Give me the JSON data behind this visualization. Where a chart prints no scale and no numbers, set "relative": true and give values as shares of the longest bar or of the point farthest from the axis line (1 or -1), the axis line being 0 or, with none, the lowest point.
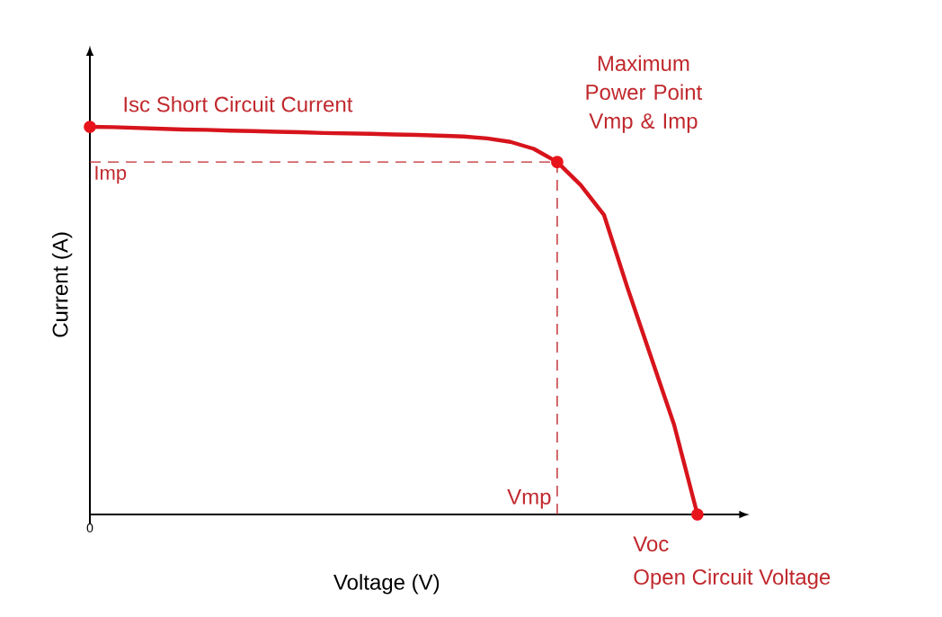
{
  "chart_data": {
    "type": "line",
    "relative": true,
    "xlabel": "Voltage (V)",
    "ylabel": "Current  (A)",
    "categories": [
      null,
      null,
      null,
      null,
      null,
      null,
      null,
      null,
      null,
      null,
      null,
      null,
      null,
      null,
      null,
      null,
      null,
      null,
      null,
      null,
      null,
      null,
      null,
      null,
      null,
      null,
      null
    ],
    "series": [
      {
        "color": "#d7141c",
        "marker": "none",
        "line_style": "solid",
        "values": [
          1,
          0.999,
          0.997,
          0.995,
          0.993,
          0.992,
          0.99,
          0.989,
          0.987,
          0.986,
          0.984,
          0.983,
          0.982,
          0.98,
          0.979,
          0.977,
          0.975,
          0.97,
          0.961,
          0.943,
          0.909,
          0.85,
          0.773,
          0.586,
          0.409,
          0.232,
          0
        ]
      }
    ],
    "ref_lines": [
      {
        "axis": "y",
        "value": 0.909,
        "label": "Imp",
        "color": "#c0282d",
        "line_style": "dashed"
      }
    ],
    "annotations": [
      "0",
      "Isc Short Circuit Current",
      "Maximum Power Point Vmp & Imp",
      "Vmp",
      "Voc",
      "Open Circuit Voltage"
    ]
  }
}
